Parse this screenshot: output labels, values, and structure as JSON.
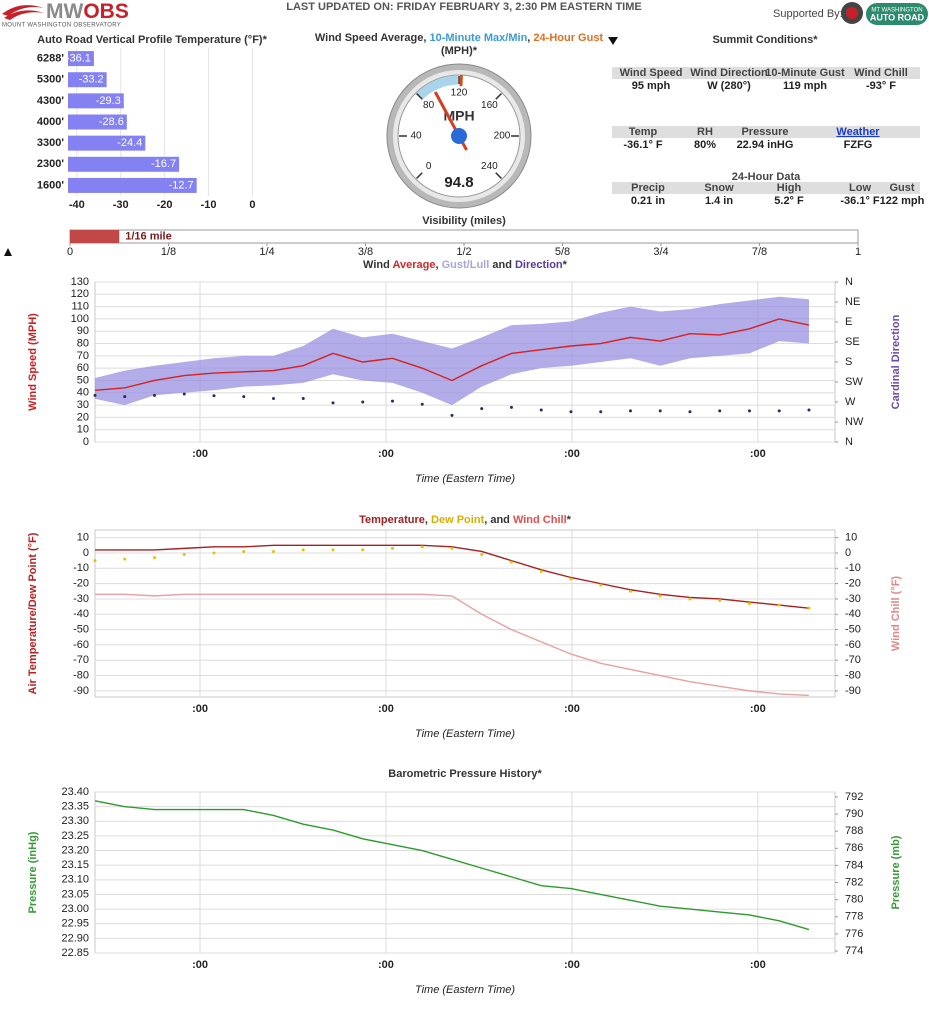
{
  "header": {
    "logo_mw": "MW",
    "logo_obs": "OBS",
    "logo_sub": "MOUNT WASHINGTON OBSERVATORY",
    "updated": "LAST UPDATED ON: FRIDAY FEBRUARY 3, 2:30 PM EASTERN TIME",
    "supported_by": "Supported By:",
    "sponsor_line1": "MT WASHINGTON",
    "sponsor_line2": "AUTO ROAD"
  },
  "summit": {
    "title": "Summit Conditions*",
    "current": [
      {
        "label": "Wind Speed",
        "value": "95 mph"
      },
      {
        "label": "Wind Direction",
        "value": "W (280°)"
      },
      {
        "label": "10-Minute Gust",
        "value": "119 mph"
      },
      {
        "label": "Wind Chill",
        "value": "-93° F"
      }
    ],
    "current2": [
      {
        "label": "Temp",
        "value": "-36.1° F"
      },
      {
        "label": "RH",
        "value": "80%"
      },
      {
        "label": "Pressure",
        "value": "22.94 inHG"
      },
      {
        "label": "Weather",
        "value": "FZFG"
      }
    ],
    "day_title": "24-Hour Data",
    "day": [
      {
        "label": "Precip",
        "value": "0.21 in"
      },
      {
        "label": "Snow",
        "value": "1.4 in"
      },
      {
        "label": "High",
        "value": "5.2° F"
      },
      {
        "label": "Low",
        "value": "-36.1° F"
      },
      {
        "label": "Gust",
        "value": "122 mph"
      }
    ]
  },
  "chart_data": [
    {
      "type": "bar",
      "title": "Auto Road Vertical Profile Temperature (°F)*",
      "categories": [
        "6288'",
        "5300'",
        "4300'",
        "4000'",
        "3300'",
        "2300'",
        "1600'"
      ],
      "values": [
        -36.1,
        -33.2,
        -29.3,
        -28.6,
        -24.4,
        -16.7,
        -12.7
      ],
      "color": "#8482f2",
      "xlim": [
        -42,
        4
      ],
      "xticks": [
        -40,
        -30,
        -20,
        -10,
        0
      ],
      "grid": true
    },
    {
      "type": "gauge",
      "title_parts": [
        {
          "text": "Wind Speed Average, ",
          "color": "#333333"
        },
        {
          "text": "10-Minute Max/Min",
          "color": "#3a9bd5"
        },
        {
          "text": ", ",
          "color": "#333333"
        },
        {
          "text": "24-Hour Gust",
          "color": "#e07020"
        }
      ],
      "subtitle": "(MPH)*",
      "unit": "MPH",
      "range": [
        0,
        240
      ],
      "ticks": [
        0,
        40,
        80,
        120,
        160,
        200,
        240
      ],
      "value": 94.8,
      "band": [
        80,
        119
      ],
      "marker": 122,
      "band_color": "#a8d4ec",
      "marker_color": "#d0501a",
      "needle_color": "#d04020"
    },
    {
      "type": "progress",
      "title": "Visibility (miles)",
      "value": 0.0625,
      "value_label": "1/16 mile",
      "color": "#c24848",
      "xlim": [
        0,
        1
      ],
      "xticks": [
        0,
        {
          "value": 0.125,
          "label": "1/8"
        },
        {
          "value": 0.25,
          "label": "1/4"
        },
        {
          "value": 0.375,
          "label": "3/8"
        },
        {
          "value": 0.5,
          "label": "1/2"
        },
        {
          "value": 0.625,
          "label": "5/8"
        },
        {
          "value": 0.75,
          "label": "3/4"
        },
        {
          "value": 0.875,
          "label": "7/8"
        },
        1
      ]
    },
    {
      "type": "line",
      "title_parts": [
        {
          "text": "Wind ",
          "color": "#333333"
        },
        {
          "text": "Average",
          "color": "#d02828"
        },
        {
          "text": ", ",
          "color": "#333333"
        },
        {
          "text": "Gust/Lull",
          "color": "#a8a4dc"
        },
        {
          "text": " and ",
          "color": "#333333"
        },
        {
          "text": "Direction",
          "color": "#5a3a9a"
        },
        {
          "text": "*",
          "color": "#333333"
        }
      ],
      "ylabel": "Wind Speed (MPH)",
      "ylabel_color": "#c82020",
      "y2label": "Cardinal Direction",
      "y2label_color": "#6a4aa8",
      "xlabel": "Time (Eastern Time)",
      "x": [
        0,
        0.16,
        0.32,
        0.48,
        0.64,
        0.8,
        0.96,
        1.12,
        1.28,
        1.44,
        1.6,
        1.76,
        1.92,
        2.08,
        2.24,
        2.4,
        2.56,
        2.72,
        2.88,
        3.04,
        3.2,
        3.36,
        3.52,
        3.68,
        3.84
      ],
      "xlim": [
        0,
        3.98
      ],
      "xticks": [
        {
          "value": 0.565,
          "label": ":00"
        },
        {
          "value": 1.565,
          "label": ":00"
        },
        {
          "value": 2.565,
          "label": ":00"
        },
        {
          "value": 3.565,
          "label": ":00"
        }
      ],
      "ylim": [
        0,
        130
      ],
      "yticks": [
        0,
        10,
        20,
        30,
        40,
        50,
        60,
        70,
        80,
        90,
        100,
        110,
        120,
        130
      ],
      "y2lim": [
        360,
        0
      ],
      "y2ticks": [
        {
          "value": 0,
          "label": "N"
        },
        {
          "value": 45,
          "label": "NE"
        },
        {
          "value": 90,
          "label": "E"
        },
        {
          "value": 135,
          "label": "SE"
        },
        {
          "value": 180,
          "label": "S"
        },
        {
          "value": 225,
          "label": "SW"
        },
        {
          "value": 270,
          "label": "W"
        },
        {
          "value": 315,
          "label": "NW"
        },
        {
          "value": 360,
          "label": "N"
        }
      ],
      "grid": true,
      "series": [
        {
          "style": "band",
          "color": "#9890e0",
          "high": [
            52,
            58,
            62,
            65,
            68,
            70,
            70,
            78,
            92,
            85,
            88,
            82,
            76,
            85,
            95,
            96,
            98,
            105,
            110,
            106,
            108,
            112,
            115,
            118,
            116
          ],
          "low": [
            35,
            30,
            38,
            40,
            42,
            45,
            46,
            48,
            55,
            50,
            48,
            40,
            30,
            45,
            55,
            60,
            62,
            65,
            68,
            62,
            68,
            70,
            72,
            82,
            80
          ]
        },
        {
          "style": "line",
          "color": "#d82020",
          "values": [
            42,
            44,
            50,
            54,
            56,
            57,
            58,
            62,
            72,
            65,
            68,
            60,
            50,
            62,
            72,
            75,
            78,
            80,
            85,
            82,
            88,
            87,
            92,
            100,
            95
          ]
        },
        {
          "style": "dots",
          "color": "#2a2a60",
          "axis": "y2",
          "values": [
            255,
            258,
            255,
            252,
            256,
            258,
            262,
            262,
            272,
            270,
            268,
            275,
            300,
            285,
            282,
            288,
            292,
            292,
            290,
            290,
            292,
            290,
            290,
            290,
            288
          ]
        }
      ]
    },
    {
      "type": "line",
      "title_parts": [
        {
          "text": "Temperature",
          "color": "#a02020"
        },
        {
          "text": ", ",
          "color": "#333333"
        },
        {
          "text": "Dew Point",
          "color": "#d4b000"
        },
        {
          "text": ", and ",
          "color": "#333333"
        },
        {
          "text": "Wind Chill",
          "color": "#e05050"
        },
        {
          "text": "*",
          "color": "#333333"
        }
      ],
      "ylabel": "Air Temperature/Dew Point (°F)",
      "ylabel_color": "#b82020",
      "y2label": "Wind Chill (°F)",
      "y2label_color": "#e08888",
      "xlabel": "Time (Eastern Time)",
      "x": [
        0,
        0.16,
        0.32,
        0.48,
        0.64,
        0.8,
        0.96,
        1.12,
        1.28,
        1.44,
        1.6,
        1.76,
        1.92,
        2.08,
        2.24,
        2.4,
        2.56,
        2.72,
        2.88,
        3.04,
        3.2,
        3.36,
        3.52,
        3.68,
        3.84
      ],
      "xlim": [
        0,
        3.98
      ],
      "xticks": [
        {
          "value": 0.565,
          "label": ":00"
        },
        {
          "value": 1.565,
          "label": ":00"
        },
        {
          "value": 2.565,
          "label": ":00"
        },
        {
          "value": 3.565,
          "label": ":00"
        }
      ],
      "ylim": [
        -94,
        15
      ],
      "yticks": [
        -90,
        -80,
        -70,
        -60,
        -50,
        -40,
        -30,
        -20,
        -10,
        0,
        10
      ],
      "y2lim": [
        -94,
        15
      ],
      "y2ticks": [
        -90,
        -80,
        -70,
        -60,
        -50,
        -40,
        -30,
        -20,
        -10,
        0,
        10
      ],
      "grid": true,
      "series": [
        {
          "style": "line",
          "color": "#e8a0a0",
          "axis": "y2",
          "values": [
            -27,
            -27,
            -28,
            -27,
            -27,
            -27,
            -27,
            -27,
            -27,
            -27,
            -27,
            -27,
            -28,
            -40,
            -50,
            -58,
            -66,
            -72,
            -76,
            -80,
            -84,
            -87,
            -90,
            -92,
            -93
          ]
        },
        {
          "style": "line",
          "color": "#a52020",
          "values": [
            2,
            2,
            2,
            3,
            4,
            4,
            5,
            5,
            5,
            5,
            5,
            5,
            4,
            1,
            -5,
            -11,
            -16,
            -20,
            -24,
            -27,
            -29,
            -30,
            -32,
            -34,
            -36
          ]
        },
        {
          "style": "dots",
          "color": "#e8c000",
          "values": [
            -5,
            -4,
            -3,
            -1,
            0,
            1,
            1,
            2,
            2,
            2,
            3,
            4,
            3,
            -1,
            -6,
            -12,
            -17,
            -21,
            -25,
            -28,
            -30,
            -31,
            -33,
            -34,
            -36
          ]
        }
      ]
    },
    {
      "type": "line",
      "title_parts": [
        {
          "text": "Barometric Pressure History*",
          "color": "#333333"
        }
      ],
      "ylabel": "Pressure (inHg)",
      "ylabel_color": "#3a9a3a",
      "y2label": "Pressure (mb)",
      "y2label_color": "#3a9a3a",
      "xlabel": "Time (Eastern Time)",
      "x": [
        0,
        0.16,
        0.32,
        0.48,
        0.64,
        0.8,
        0.96,
        1.12,
        1.28,
        1.44,
        1.6,
        1.76,
        1.92,
        2.08,
        2.24,
        2.4,
        2.56,
        2.72,
        2.88,
        3.04,
        3.2,
        3.36,
        3.52,
        3.68,
        3.84
      ],
      "xlim": [
        0,
        3.98
      ],
      "xticks": [
        {
          "value": 0.565,
          "label": ":00"
        },
        {
          "value": 1.565,
          "label": ":00"
        },
        {
          "value": 2.565,
          "label": ":00"
        },
        {
          "value": 3.565,
          "label": ":00"
        }
      ],
      "ylim": [
        22.85,
        23.4
      ],
      "yticks": [
        22.85,
        {
          "value": 22.9,
          "label": "22.90"
        },
        22.95,
        {
          "value": 23,
          "label": "23.00"
        },
        23.05,
        {
          "value": 23.1,
          "label": "23.10"
        },
        23.15,
        {
          "value": 23.2,
          "label": "23.20"
        },
        23.25,
        {
          "value": 23.3,
          "label": "23.30"
        },
        23.35,
        {
          "value": 23.4,
          "label": "23.40"
        }
      ],
      "y2lim": [
        773.77,
        792.58
      ],
      "y2ticks": [
        774,
        776,
        778,
        780,
        782,
        784,
        786,
        788,
        790,
        792
      ],
      "grid": true,
      "series": [
        {
          "style": "line",
          "color": "#2e9a2e",
          "values": [
            23.37,
            23.35,
            23.34,
            23.34,
            23.34,
            23.34,
            23.32,
            23.29,
            23.27,
            23.24,
            23.22,
            23.2,
            23.17,
            23.14,
            23.11,
            23.08,
            23.07,
            23.05,
            23.03,
            23.01,
            23.0,
            22.99,
            22.98,
            22.96,
            22.93
          ]
        }
      ]
    }
  ]
}
